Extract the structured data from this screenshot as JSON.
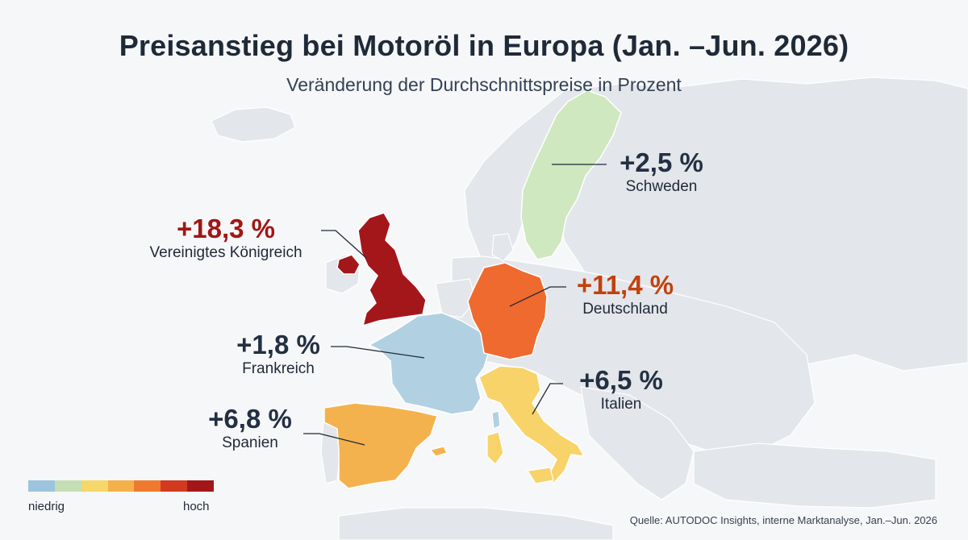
{
  "header": {
    "title": "Preisanstieg bei Motoröl in Europa (Jan. –Jun. 2026)",
    "subtitle": "Veränderung der Durchschnittspreise in Prozent"
  },
  "countries": {
    "uk": {
      "value": "+18,3 %",
      "name": "Vereinigtes Königreich",
      "color": "#a3171b"
    },
    "de": {
      "value": "+11,4 %",
      "name": "Deutschland",
      "color": "#ef6a2e"
    },
    "se": {
      "value": "+2,5 %",
      "name": "Schweden",
      "color": "#cfe8bf"
    },
    "fr": {
      "value": "+1,8 %",
      "name": "Frankreich",
      "color": "#b1d1e2"
    },
    "es": {
      "value": "+6,8 %",
      "name": "Spanien",
      "color": "#f4b24e"
    },
    "it": {
      "value": "+6,5 %",
      "name": "Italien",
      "color": "#f7d36a"
    }
  },
  "legend": {
    "low_label": "niedrig",
    "high_label": "hoch",
    "colors": [
      "#9cc4de",
      "#c5deb5",
      "#f5d76a",
      "#f5b04a",
      "#ef7a2f",
      "#d13a1f",
      "#a3171b"
    ]
  },
  "source": "Quelle: AUTODOC Insights, interne Marktanalyse, Jan.–Jun. 2026"
}
